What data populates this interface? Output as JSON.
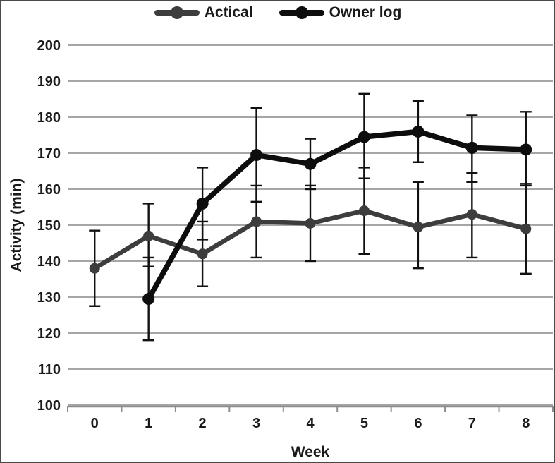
{
  "figure": {
    "background": "#ffffff",
    "border_color": "#4a4a4a"
  },
  "colors": {
    "gridline": "#a6a6a6",
    "axis_line": "#8c8c8c",
    "error_bar": "#111111",
    "text": "#1a1a1a"
  },
  "chart_data": {
    "type": "line",
    "title": "",
    "xlabel": "Week",
    "ylabel": "Activity (min)",
    "x": [
      0,
      1,
      2,
      3,
      4,
      5,
      6,
      7,
      8
    ],
    "xticks": [
      "0",
      "1",
      "2",
      "3",
      "4",
      "5",
      "6",
      "7",
      "8"
    ],
    "yticks": [
      100,
      110,
      120,
      130,
      140,
      150,
      160,
      170,
      180,
      190,
      200
    ],
    "ylim": [
      100,
      200
    ],
    "grid": true,
    "legend_position": "top-center",
    "error_bars": true,
    "series": [
      {
        "name": "Actical",
        "color": "#3d3d3d",
        "line_width": 6.5,
        "marker_radius": 7.5,
        "values": [
          138,
          147,
          142,
          151,
          150.5,
          154,
          149.5,
          153,
          149
        ],
        "error_low": [
          127.5,
          138.5,
          133,
          141,
          140,
          142,
          138,
          141,
          136.5
        ],
        "error_high": [
          148.5,
          156,
          151,
          161,
          161,
          166,
          162,
          164.5,
          161.5
        ]
      },
      {
        "name": "Owner log",
        "color": "#0d0d0d",
        "line_width": 7.5,
        "marker_radius": 8.5,
        "values": [
          null,
          129.5,
          156,
          169.5,
          167,
          174.5,
          176,
          171.5,
          171
        ],
        "error_low": [
          null,
          118,
          146,
          156.5,
          160,
          163,
          167.5,
          162,
          161
        ],
        "error_high": [
          null,
          141,
          166,
          182.5,
          174,
          186.5,
          184.5,
          180.5,
          181.5
        ]
      }
    ]
  }
}
